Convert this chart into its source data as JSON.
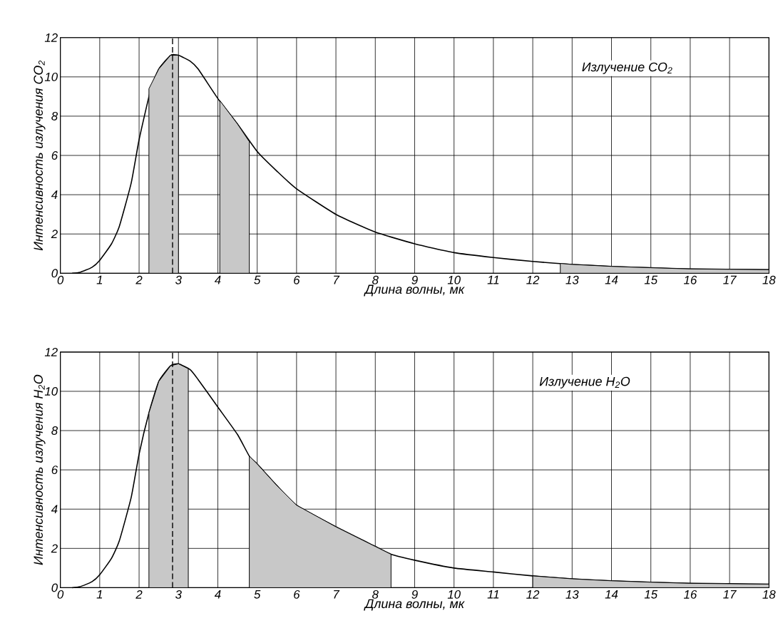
{
  "chart_data": [
    {
      "type": "line",
      "xlabel": "Длина волны, мк",
      "ylabel": "Интенсивность излучения CO$_{2}$",
      "annotations": [
        "Излучение CO$_{2}$"
      ],
      "xlim": [
        0,
        18
      ],
      "ylim": [
        0,
        12
      ],
      "xticks": [
        0,
        1,
        2,
        3,
        4,
        5,
        6,
        7,
        8,
        9,
        10,
        11,
        12,
        13,
        14,
        15,
        16,
        17,
        18
      ],
      "yticks": [
        0,
        2,
        4,
        6,
        8,
        10,
        12
      ],
      "grid": true,
      "marker": "none",
      "ref_lines": [
        {
          "axis": "x",
          "value": 2.85,
          "color": "#000000",
          "line_style": "dashed"
        }
      ],
      "series": [
        {
          "color": "#000000",
          "x": [
            0.3,
            0.5,
            0.8,
            1,
            1.3,
            1.5,
            1.8,
            2,
            2.3,
            2.5,
            2.8,
            3,
            3.3,
            3.5,
            4,
            4.5,
            5,
            5.5,
            6,
            7,
            8,
            9,
            10,
            11,
            12,
            13,
            14,
            15,
            16,
            17,
            18
          ],
          "values": [
            0,
            0.05,
            0.3,
            0.66,
            1.5,
            2.4,
            4.6,
            6.8,
            9.4,
            10.4,
            11.1,
            11.1,
            10.8,
            10.4,
            8.9,
            7.6,
            6.2,
            5.2,
            4.3,
            3.0,
            2.1,
            1.5,
            1.05,
            0.8,
            0.6,
            0.45,
            0.35,
            0.28,
            0.22,
            0.2,
            0.18
          ]
        },
        {
          "type": "area",
          "color": "#c8c8c8",
          "x": [
            2.25,
            2.5,
            2.8,
            3.0
          ],
          "values": [
            9.4,
            10.4,
            11.1,
            11.1
          ]
        },
        {
          "type": "area",
          "color": "#c8c8c8",
          "x": [
            4.05,
            4.5,
            4.8
          ],
          "values": [
            8.8,
            7.6,
            6.7
          ]
        },
        {
          "type": "area",
          "color": "#c8c8c8",
          "x": [
            12.7,
            13,
            14,
            15,
            16,
            17,
            18
          ],
          "values": [
            0.5,
            0.45,
            0.35,
            0.28,
            0.22,
            0.2,
            0.18
          ]
        }
      ]
    },
    {
      "type": "line",
      "xlabel": "Длина волны, мк",
      "ylabel": "Интенсивность излучения H$_{2}$O",
      "annotations": [
        "Излучение H$_{2}$O"
      ],
      "xlim": [
        0,
        18
      ],
      "ylim": [
        0,
        12
      ],
      "xticks": [
        0,
        1,
        2,
        3,
        4,
        5,
        6,
        7,
        8,
        9,
        10,
        11,
        12,
        13,
        14,
        15,
        16,
        17,
        18
      ],
      "yticks": [
        0,
        2,
        4,
        6,
        8,
        10,
        12
      ],
      "grid": true,
      "marker": "none",
      "ref_lines": [
        {
          "axis": "x",
          "value": 2.85,
          "color": "#000000",
          "line_style": "dashed"
        }
      ],
      "series": [
        {
          "color": "#000000",
          "x": [
            0.3,
            0.5,
            0.8,
            1,
            1.3,
            1.5,
            1.8,
            2,
            2.25,
            2.5,
            2.8,
            3,
            3.3,
            3.5,
            4,
            4.5,
            4.8,
            5,
            5.5,
            6,
            7,
            8,
            8.4,
            9,
            10,
            11,
            12,
            13,
            14,
            15,
            16,
            17,
            18
          ],
          "values": [
            0,
            0.05,
            0.3,
            0.66,
            1.5,
            2.4,
            4.6,
            6.8,
            8.9,
            10.5,
            11.3,
            11.4,
            11.1,
            10.6,
            9.2,
            7.8,
            6.7,
            6.3,
            5.2,
            4.2,
            3.1,
            2.1,
            1.7,
            1.4,
            1.0,
            0.8,
            0.6,
            0.45,
            0.35,
            0.28,
            0.22,
            0.2,
            0.18
          ]
        },
        {
          "type": "area",
          "color": "#c8c8c8",
          "x": [
            2.25,
            2.5,
            2.8,
            3,
            3.25
          ],
          "values": [
            8.9,
            10.5,
            11.3,
            11.4,
            11.15
          ]
        },
        {
          "type": "area",
          "color": "#c8c8c8",
          "x": [
            4.8,
            5,
            5.5,
            6,
            7,
            8,
            8.4
          ],
          "values": [
            6.7,
            6.3,
            5.2,
            4.2,
            3.1,
            2.1,
            1.7
          ]
        },
        {
          "type": "area",
          "color": "#c8c8c8",
          "x": [
            12,
            13,
            14,
            15,
            16,
            17,
            18
          ],
          "values": [
            0.6,
            0.45,
            0.35,
            0.28,
            0.22,
            0.2,
            0.18
          ]
        }
      ]
    }
  ]
}
